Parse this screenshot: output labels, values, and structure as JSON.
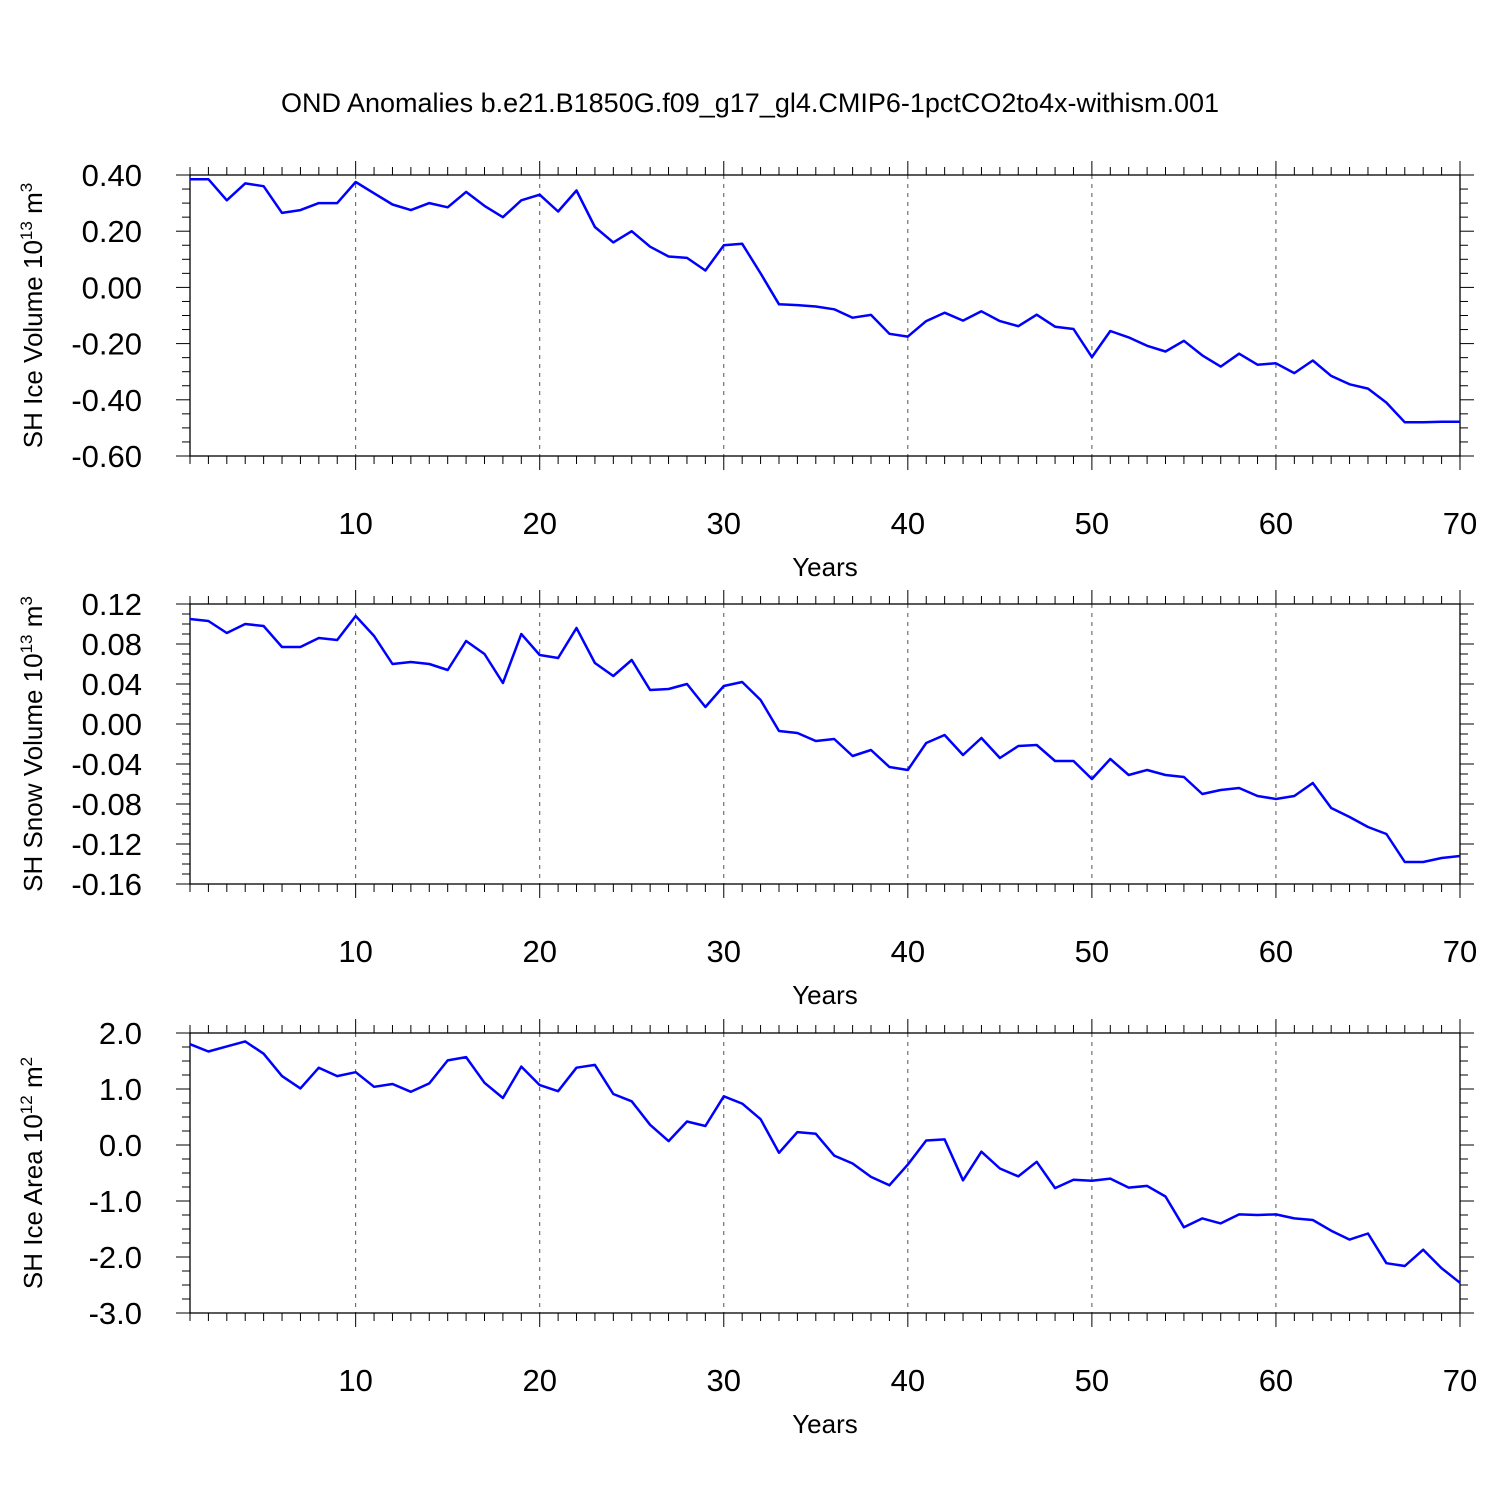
{
  "title": "OND Anomalies b.e21.B1850G.f09_g17_gl4.CMIP6-1pctCO2to4x-withism.001",
  "colors": {
    "series": "#0000ff",
    "axis": "#000000",
    "grid": "#555555"
  },
  "chart_data": [
    {
      "type": "line",
      "ylabel": {
        "prefix": "SH Ice Volume 10",
        "exp": "13",
        "unit": " m",
        "unit_exp": "3"
      },
      "xlabel": "Years",
      "xlim": [
        1,
        70
      ],
      "ylim": [
        -0.6,
        0.4
      ],
      "x_ticks": [
        10,
        20,
        30,
        40,
        50,
        60,
        70
      ],
      "y_ticks": [
        -0.6,
        -0.4,
        -0.2,
        0.0,
        0.2,
        0.4
      ],
      "y_tick_labels": [
        "-0.60",
        "-0.40",
        "-0.20",
        "0.00",
        "0.20",
        "0.40"
      ],
      "grid": "vertical dashed at x ticks",
      "x": [
        1,
        2,
        3,
        4,
        5,
        6,
        7,
        8,
        9,
        10,
        11,
        12,
        13,
        14,
        15,
        16,
        17,
        18,
        19,
        20,
        21,
        22,
        23,
        24,
        25,
        26,
        27,
        28,
        29,
        30,
        31,
        32,
        33,
        34,
        35,
        36,
        37,
        38,
        39,
        40,
        41,
        42,
        43,
        44,
        45,
        46,
        47,
        48,
        49,
        50,
        51,
        52,
        53,
        54,
        55,
        56,
        57,
        58,
        59,
        60,
        61,
        62,
        63,
        64,
        65,
        66,
        67,
        68,
        69,
        70
      ],
      "values": [
        0.385,
        0.385,
        0.31,
        0.37,
        0.36,
        0.265,
        0.275,
        0.3,
        0.3,
        0.375,
        0.335,
        0.295,
        0.275,
        0.3,
        0.285,
        0.34,
        0.29,
        0.25,
        0.31,
        0.33,
        0.27,
        0.345,
        0.215,
        0.16,
        0.2,
        0.145,
        0.11,
        0.105,
        0.06,
        0.15,
        0.155,
        0.05,
        -0.06,
        -0.063,
        -0.068,
        -0.078,
        -0.108,
        -0.098,
        -0.165,
        -0.175,
        -0.12,
        -0.09,
        -0.118,
        -0.085,
        -0.12,
        -0.138,
        -0.097,
        -0.14,
        -0.148,
        -0.248,
        -0.155,
        -0.178,
        -0.208,
        -0.228,
        -0.19,
        -0.242,
        -0.282,
        -0.236,
        -0.275,
        -0.27,
        -0.305,
        -0.26,
        -0.315,
        -0.345,
        -0.36,
        -0.41,
        -0.48,
        -0.48,
        -0.478,
        -0.478
      ]
    },
    {
      "type": "line",
      "ylabel": {
        "prefix": "SH Snow Volume 10",
        "exp": "13",
        "unit": " m",
        "unit_exp": "3"
      },
      "xlabel": "Years",
      "xlim": [
        1,
        70
      ],
      "ylim": [
        -0.16,
        0.12
      ],
      "x_ticks": [
        10,
        20,
        30,
        40,
        50,
        60,
        70
      ],
      "y_ticks": [
        -0.16,
        -0.12,
        -0.08,
        -0.04,
        0.0,
        0.04,
        0.08,
        0.12
      ],
      "y_tick_labels": [
        "-0.16",
        "-0.12",
        "-0.08",
        "-0.04",
        "0.00",
        "0.04",
        "0.08",
        "0.12"
      ],
      "grid": "vertical dashed at x ticks",
      "x": [
        1,
        2,
        3,
        4,
        5,
        6,
        7,
        8,
        9,
        10,
        11,
        12,
        13,
        14,
        15,
        16,
        17,
        18,
        19,
        20,
        21,
        22,
        23,
        24,
        25,
        26,
        27,
        28,
        29,
        30,
        31,
        32,
        33,
        34,
        35,
        36,
        37,
        38,
        39,
        40,
        41,
        42,
        43,
        44,
        45,
        46,
        47,
        48,
        49,
        50,
        51,
        52,
        53,
        54,
        55,
        56,
        57,
        58,
        59,
        60,
        61,
        62,
        63,
        64,
        65,
        66,
        67,
        68,
        69,
        70
      ],
      "values": [
        0.105,
        0.103,
        0.091,
        0.1,
        0.098,
        0.077,
        0.077,
        0.086,
        0.084,
        0.108,
        0.088,
        0.06,
        0.062,
        0.06,
        0.054,
        0.083,
        0.07,
        0.041,
        0.09,
        0.069,
        0.066,
        0.096,
        0.061,
        0.048,
        0.064,
        0.034,
        0.035,
        0.04,
        0.017,
        0.038,
        0.042,
        0.024,
        -0.007,
        -0.009,
        -0.017,
        -0.015,
        -0.032,
        -0.026,
        -0.043,
        -0.046,
        -0.019,
        -0.011,
        -0.031,
        -0.014,
        -0.034,
        -0.022,
        -0.021,
        -0.037,
        -0.037,
        -0.055,
        -0.035,
        -0.051,
        -0.046,
        -0.051,
        -0.053,
        -0.07,
        -0.066,
        -0.064,
        -0.072,
        -0.075,
        -0.072,
        -0.059,
        -0.084,
        -0.093,
        -0.103,
        -0.11,
        -0.138,
        -0.138,
        -0.134,
        -0.132
      ]
    },
    {
      "type": "line",
      "ylabel": {
        "prefix": "SH Ice Area 10",
        "exp": "12",
        "unit": " m",
        "unit_exp": "2"
      },
      "xlabel": "Years",
      "xlim": [
        1,
        70
      ],
      "ylim": [
        -3.0,
        2.0
      ],
      "x_ticks": [
        10,
        20,
        30,
        40,
        50,
        60,
        70
      ],
      "y_ticks": [
        -3.0,
        -2.0,
        -1.0,
        0.0,
        1.0,
        2.0
      ],
      "y_tick_labels": [
        "-3.0",
        "-2.0",
        "-1.0",
        "0.0",
        "1.0",
        "2.0"
      ],
      "grid": "vertical dashed at x ticks",
      "x": [
        1,
        2,
        3,
        4,
        5,
        6,
        7,
        8,
        9,
        10,
        11,
        12,
        13,
        14,
        15,
        16,
        17,
        18,
        19,
        20,
        21,
        22,
        23,
        24,
        25,
        26,
        27,
        28,
        29,
        30,
        31,
        32,
        33,
        34,
        35,
        36,
        37,
        38,
        39,
        40,
        41,
        42,
        43,
        44,
        45,
        46,
        47,
        48,
        49,
        50,
        51,
        52,
        53,
        54,
        55,
        56,
        57,
        58,
        59,
        60,
        61,
        62,
        63,
        64,
        65,
        66,
        67,
        68,
        69,
        70
      ],
      "values": [
        1.8,
        1.67,
        1.76,
        1.85,
        1.63,
        1.23,
        1.01,
        1.38,
        1.23,
        1.3,
        1.04,
        1.09,
        0.95,
        1.1,
        1.51,
        1.57,
        1.11,
        0.84,
        1.4,
        1.07,
        0.96,
        1.38,
        1.43,
        0.91,
        0.78,
        0.36,
        0.07,
        0.42,
        0.34,
        0.87,
        0.74,
        0.46,
        -0.14,
        0.23,
        0.2,
        -0.19,
        -0.33,
        -0.57,
        -0.72,
        -0.35,
        0.08,
        0.1,
        -0.63,
        -0.12,
        -0.42,
        -0.56,
        -0.3,
        -0.77,
        -0.62,
        -0.64,
        -0.6,
        -0.76,
        -0.73,
        -0.92,
        -1.47,
        -1.31,
        -1.4,
        -1.24,
        -1.25,
        -1.24,
        -1.31,
        -1.34,
        -1.53,
        -1.69,
        -1.58,
        -2.11,
        -2.16,
        -1.87,
        -2.2,
        -2.46
      ]
    }
  ]
}
